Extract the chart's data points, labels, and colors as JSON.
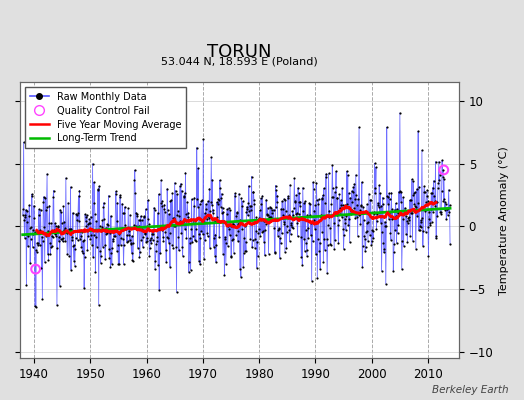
{
  "title": "TORUN",
  "subtitle": "53.044 N, 18.593 E (Poland)",
  "ylabel": "Temperature Anomaly (°C)",
  "xlim": [
    1937.5,
    2015.5
  ],
  "ylim": [
    -10.5,
    11.5
  ],
  "yticks": [
    -10,
    -5,
    0,
    5,
    10
  ],
  "xticks": [
    1940,
    1950,
    1960,
    1970,
    1980,
    1990,
    2000,
    2010
  ],
  "background_color": "#e0e0e0",
  "plot_background": "#ffffff",
  "raw_line_color": "#5555ff",
  "raw_dot_color": "#000000",
  "qc_fail_color": "#ff44ff",
  "moving_avg_color": "#ff0000",
  "trend_color": "#00bb00",
  "watermark": "Berkeley Earth",
  "seed": 137,
  "start_year": 1938,
  "end_year": 2014
}
